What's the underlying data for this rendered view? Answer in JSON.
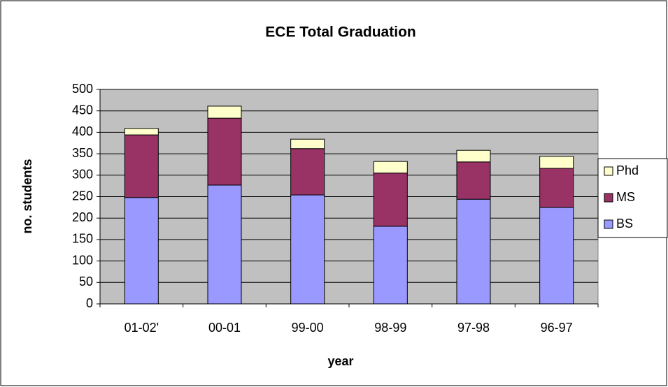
{
  "chart_data": {
    "type": "stacked_bar",
    "title": "ECE Total Graduation",
    "x_label": "year",
    "y_label": "no. students",
    "categories": [
      "01-02'",
      "00-01",
      "99-00",
      "98-99",
      "97-98",
      "96-97"
    ],
    "series": [
      {
        "name": "BS",
        "color": "#9999ff",
        "values": [
          248,
          277,
          254,
          181,
          244,
          225
        ]
      },
      {
        "name": "MS",
        "color": "#993366",
        "values": [
          146,
          156,
          108,
          124,
          87,
          91
        ]
      },
      {
        "name": "Phd",
        "color": "#ffffcc",
        "values": [
          15,
          28,
          22,
          27,
          27,
          28
        ]
      }
    ],
    "ylim": [
      0,
      500
    ],
    "yticks": [
      0,
      50,
      100,
      150,
      200,
      250,
      300,
      350,
      400,
      450,
      500
    ],
    "grid": true,
    "legend": "right"
  }
}
